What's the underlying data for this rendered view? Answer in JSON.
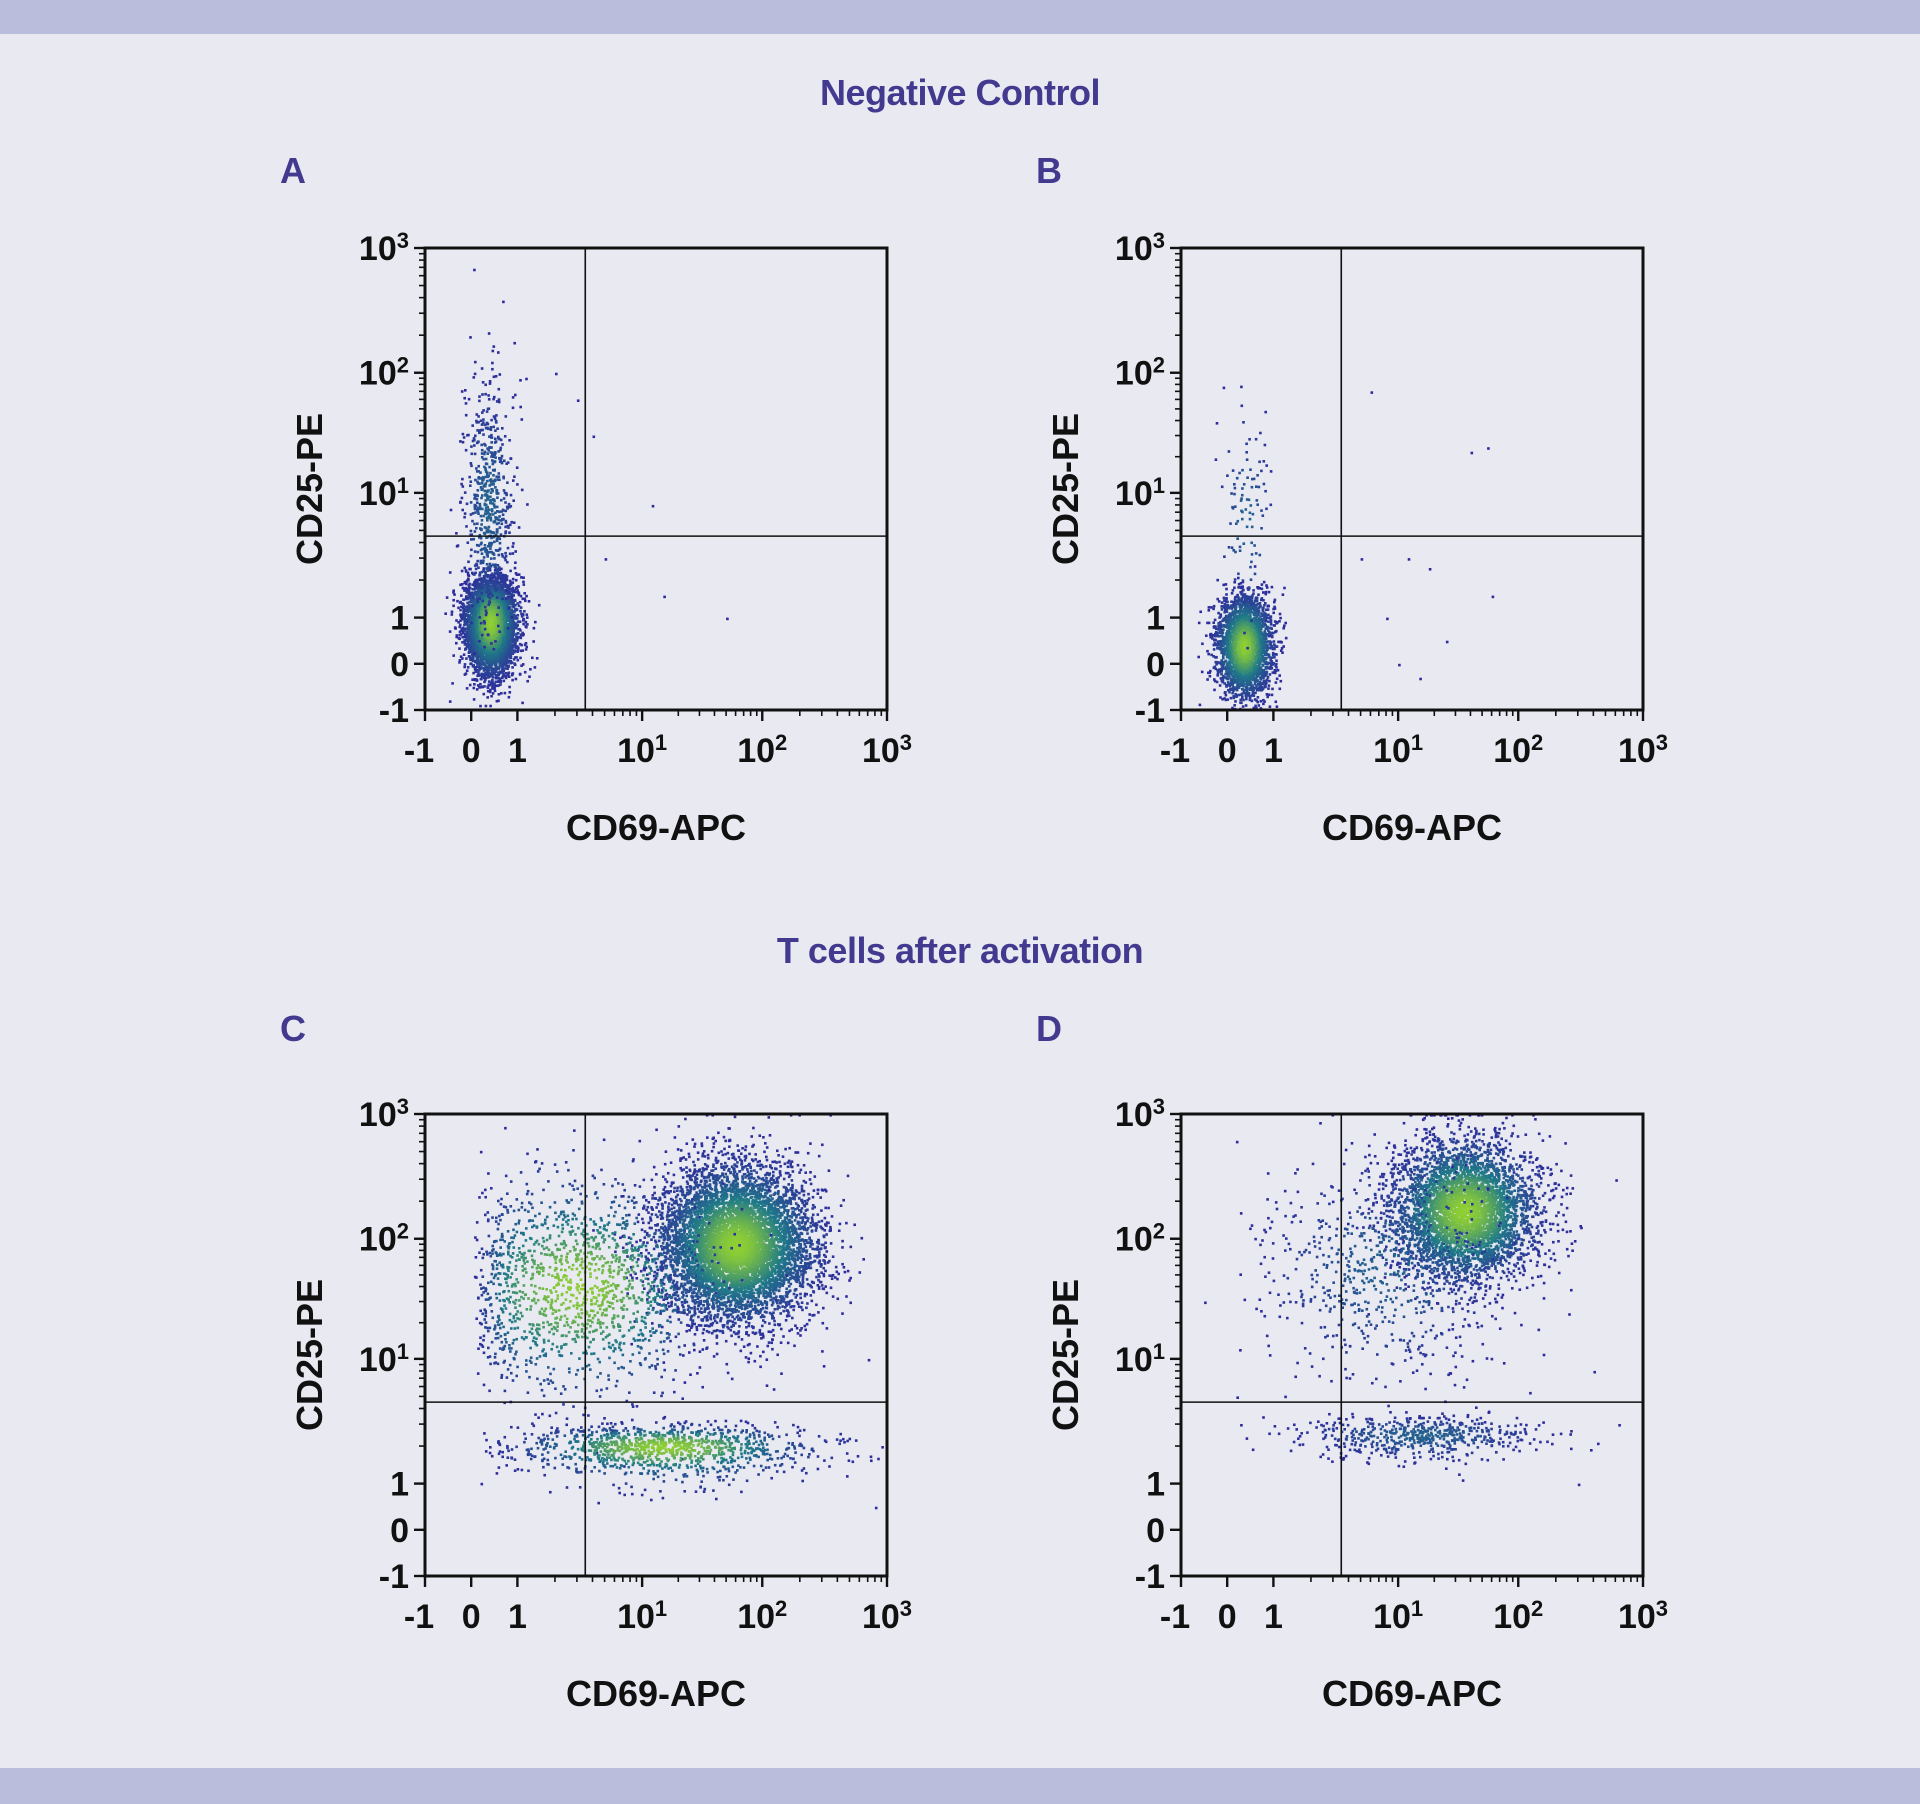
{
  "sections": [
    {
      "title": "Negative Control"
    },
    {
      "title": "T cells after activation"
    }
  ],
  "colors": {
    "band": "#bbbddc",
    "background": "#e9e9f2",
    "title": "#433a8f",
    "dot_low": "#2e2a9c",
    "dot_mid": "#1f7a88",
    "dot_high": "#8fcf33"
  },
  "chart_data": [
    {
      "panel": "A",
      "type": "scatter",
      "xlabel": "CD69-APC",
      "ylabel": "CD25-PE",
      "x_ticks": [
        {
          "b": "-1",
          "e": ""
        },
        {
          "b": "0",
          "e": ""
        },
        {
          "b": "1",
          "e": ""
        },
        {
          "b": "10",
          "e": "1"
        },
        {
          "b": "10",
          "e": "2"
        },
        {
          "b": "10",
          "e": "3"
        }
      ],
      "y_ticks": [
        {
          "b": "-1",
          "e": ""
        },
        {
          "b": "0",
          "e": ""
        },
        {
          "b": "1",
          "e": ""
        },
        {
          "b": "10",
          "e": "1"
        },
        {
          "b": "10",
          "e": "2"
        },
        {
          "b": "10",
          "e": "3"
        }
      ],
      "xlim": [
        -1,
        1000
      ],
      "ylim": [
        -1,
        1000
      ],
      "gate": {
        "x": 3.5,
        "y": 4.5
      },
      "clusters": [
        {
          "cx": 0.4,
          "cy": 0.9,
          "sx": 0.28,
          "sy": 0.55,
          "n": 4200
        },
        {
          "cx": 0.35,
          "cy": 8,
          "sx": 0.28,
          "sy": 0.5,
          "n": 650,
          "logy": true
        }
      ],
      "outliers": [
        [
          4,
          30
        ],
        [
          5,
          3
        ],
        [
          12,
          8
        ],
        [
          15,
          1.5
        ],
        [
          50,
          1
        ],
        [
          3,
          60
        ],
        [
          2,
          100
        ]
      ]
    },
    {
      "panel": "B",
      "type": "scatter",
      "xlabel": "CD69-APC",
      "ylabel": "CD25-PE",
      "x_ticks": [
        {
          "b": "-1",
          "e": ""
        },
        {
          "b": "0",
          "e": ""
        },
        {
          "b": "1",
          "e": ""
        },
        {
          "b": "10",
          "e": "1"
        },
        {
          "b": "10",
          "e": "2"
        },
        {
          "b": "10",
          "e": "3"
        }
      ],
      "y_ticks": [
        {
          "b": "-1",
          "e": ""
        },
        {
          "b": "0",
          "e": ""
        },
        {
          "b": "1",
          "e": ""
        },
        {
          "b": "10",
          "e": "1"
        },
        {
          "b": "10",
          "e": "2"
        },
        {
          "b": "10",
          "e": "3"
        }
      ],
      "xlim": [
        -1,
        1000
      ],
      "ylim": [
        -1,
        1000
      ],
      "gate": {
        "x": 3.5,
        "y": 4.5
      },
      "clusters": [
        {
          "cx": 0.35,
          "cy": 0.4,
          "sx": 0.3,
          "sy": 0.55,
          "n": 2600
        },
        {
          "cx": 0.4,
          "cy": 6,
          "sx": 0.3,
          "sy": 0.45,
          "n": 110,
          "logy": true
        }
      ],
      "outliers": [
        [
          6,
          70
        ],
        [
          40,
          22
        ],
        [
          55,
          24
        ],
        [
          8,
          1
        ],
        [
          10,
          0
        ],
        [
          15,
          -0.3
        ],
        [
          25,
          0.5
        ],
        [
          18,
          2.5
        ],
        [
          60,
          1.5
        ],
        [
          5,
          3
        ],
        [
          12,
          3
        ]
      ]
    },
    {
      "panel": "C",
      "type": "scatter",
      "xlabel": "CD69-APC",
      "ylabel": "CD25-PE",
      "x_ticks": [
        {
          "b": "-1",
          "e": ""
        },
        {
          "b": "0",
          "e": ""
        },
        {
          "b": "1",
          "e": ""
        },
        {
          "b": "10",
          "e": "1"
        },
        {
          "b": "10",
          "e": "2"
        },
        {
          "b": "10",
          "e": "3"
        }
      ],
      "y_ticks": [
        {
          "b": "-1",
          "e": ""
        },
        {
          "b": "0",
          "e": ""
        },
        {
          "b": "1",
          "e": ""
        },
        {
          "b": "10",
          "e": "1"
        },
        {
          "b": "10",
          "e": "2"
        },
        {
          "b": "10",
          "e": "3"
        }
      ],
      "xlim": [
        -1,
        1000
      ],
      "ylim": [
        -1,
        1000
      ],
      "gate": {
        "x": 3.5,
        "y": 4.5
      },
      "clusters": [
        {
          "cx": 60,
          "cy": 90,
          "sx": 0.32,
          "sy": 0.32,
          "n": 6500,
          "logx": true,
          "logy": true
        },
        {
          "cx": 3,
          "cy": 40,
          "sx": 0.55,
          "sy": 0.45,
          "n": 1500,
          "logx": true,
          "logy": true
        },
        {
          "cx": 15,
          "cy": 2,
          "sx": 0.6,
          "sy": 0.5,
          "n": 1100,
          "logx": true
        }
      ],
      "outliers": [
        [
          700,
          10
        ],
        [
          900,
          2
        ],
        [
          500,
          30
        ],
        [
          0.1,
          100
        ],
        [
          800,
          0.5
        ]
      ]
    },
    {
      "panel": "D",
      "type": "scatter",
      "xlabel": "CD69-APC",
      "ylabel": "CD25-PE",
      "x_ticks": [
        {
          "b": "-1",
          "e": ""
        },
        {
          "b": "0",
          "e": ""
        },
        {
          "b": "1",
          "e": ""
        },
        {
          "b": "10",
          "e": "1"
        },
        {
          "b": "10",
          "e": "2"
        },
        {
          "b": "10",
          "e": "3"
        }
      ],
      "y_ticks": [
        {
          "b": "-1",
          "e": ""
        },
        {
          "b": "0",
          "e": ""
        },
        {
          "b": "1",
          "e": ""
        },
        {
          "b": "10",
          "e": "1"
        },
        {
          "b": "10",
          "e": "2"
        },
        {
          "b": "10",
          "e": "3"
        }
      ],
      "xlim": [
        -1,
        1000
      ],
      "ylim": [
        -1,
        1000
      ],
      "gate": {
        "x": 3.5,
        "y": 4.5
      },
      "clusters": [
        {
          "cx": 35,
          "cy": 170,
          "sx": 0.3,
          "sy": 0.28,
          "n": 4200,
          "logx": true,
          "logy": true
        },
        {
          "cx": 8,
          "cy": 60,
          "sx": 0.5,
          "sy": 0.45,
          "n": 700,
          "logx": true,
          "logy": true
        },
        {
          "cx": 15,
          "cy": 2.5,
          "sx": 0.5,
          "sy": 0.5,
          "n": 550,
          "logx": true
        }
      ],
      "outliers": [
        [
          600,
          300
        ],
        [
          400,
          8
        ],
        [
          0.2,
          5
        ],
        [
          -0.5,
          30
        ],
        [
          300,
          1
        ]
      ]
    }
  ]
}
